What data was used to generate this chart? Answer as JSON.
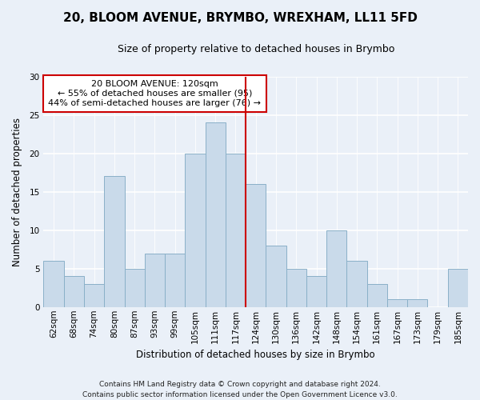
{
  "title_line1": "20, BLOOM AVENUE, BRYMBO, WREXHAM, LL11 5FD",
  "title_line2": "Size of property relative to detached houses in Brymbo",
  "xlabel": "Distribution of detached houses by size in Brymbo",
  "ylabel": "Number of detached properties",
  "bin_labels": [
    "62sqm",
    "68sqm",
    "74sqm",
    "80sqm",
    "87sqm",
    "93sqm",
    "99sqm",
    "105sqm",
    "111sqm",
    "117sqm",
    "124sqm",
    "130sqm",
    "136sqm",
    "142sqm",
    "148sqm",
    "154sqm",
    "161sqm",
    "167sqm",
    "173sqm",
    "179sqm",
    "185sqm"
  ],
  "bar_heights": [
    6,
    4,
    3,
    17,
    5,
    7,
    7,
    20,
    24,
    20,
    16,
    8,
    5,
    4,
    10,
    6,
    3,
    1,
    1,
    0,
    5
  ],
  "bar_color": "#c9daea",
  "bar_edgecolor": "#8ab0c8",
  "marker_color": "#cc0000",
  "annotation_line1": "20 BLOOM AVENUE: 120sqm",
  "annotation_line2": "← 55% of detached houses are smaller (95)",
  "annotation_line3": "44% of semi-detached houses are larger (76) →",
  "box_facecolor": "#ffffff",
  "box_edgecolor": "#cc0000",
  "ylim": [
    0,
    30
  ],
  "yticks": [
    0,
    5,
    10,
    15,
    20,
    25,
    30
  ],
  "footnote1": "Contains HM Land Registry data © Crown copyright and database right 2024.",
  "footnote2": "Contains public sector information licensed under the Open Government Licence v3.0.",
  "bg_color": "#eaf0f8",
  "plot_bg_color": "#eaf0f8",
  "grid_color": "#ffffff",
  "title_fontsize": 11,
  "subtitle_fontsize": 9,
  "axis_label_fontsize": 8.5,
  "tick_fontsize": 7.5,
  "annotation_fontsize": 8,
  "footnote_fontsize": 6.5
}
